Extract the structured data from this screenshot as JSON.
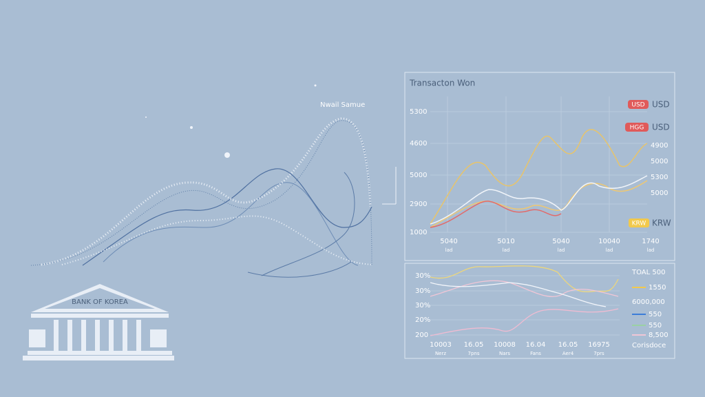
{
  "illustration": {
    "wave_label": "Nwail Samue",
    "bank_label": "BANK OF KOREA"
  },
  "top_panel": {
    "title": "Transacton Won",
    "y_labels": [
      "5300",
      "4600",
      "5000",
      "2900",
      "1000"
    ],
    "x_labels": [
      "5040",
      "5010",
      "5040",
      "10040",
      "1740"
    ],
    "x_sublabels": [
      "lad",
      "lad",
      "lad",
      "lad",
      "lad"
    ],
    "legend": [
      {
        "badge": "USD",
        "label": "USD"
      },
      {
        "badge": "HGG",
        "label": "USD"
      }
    ],
    "right_labels": [
      "4900",
      "5000",
      "5300",
      "5000"
    ],
    "bottom_legend": {
      "badge": "KRW",
      "label": "KRW"
    }
  },
  "bottom_panel": {
    "y_labels": [
      "30%",
      "30%",
      "30%",
      "20%",
      "200"
    ],
    "x_labels": [
      "10003",
      "16.05",
      "10008",
      "16.04",
      "16.05",
      "16975"
    ],
    "x_sublabels": [
      "Nerz",
      "7pns",
      "Nars",
      "Fans",
      "Aer4",
      "7prs"
    ],
    "legend": [
      "TOAL 500",
      "1550",
      "6000,000",
      "550",
      "550",
      "8,500",
      "Corisdoce"
    ]
  }
}
